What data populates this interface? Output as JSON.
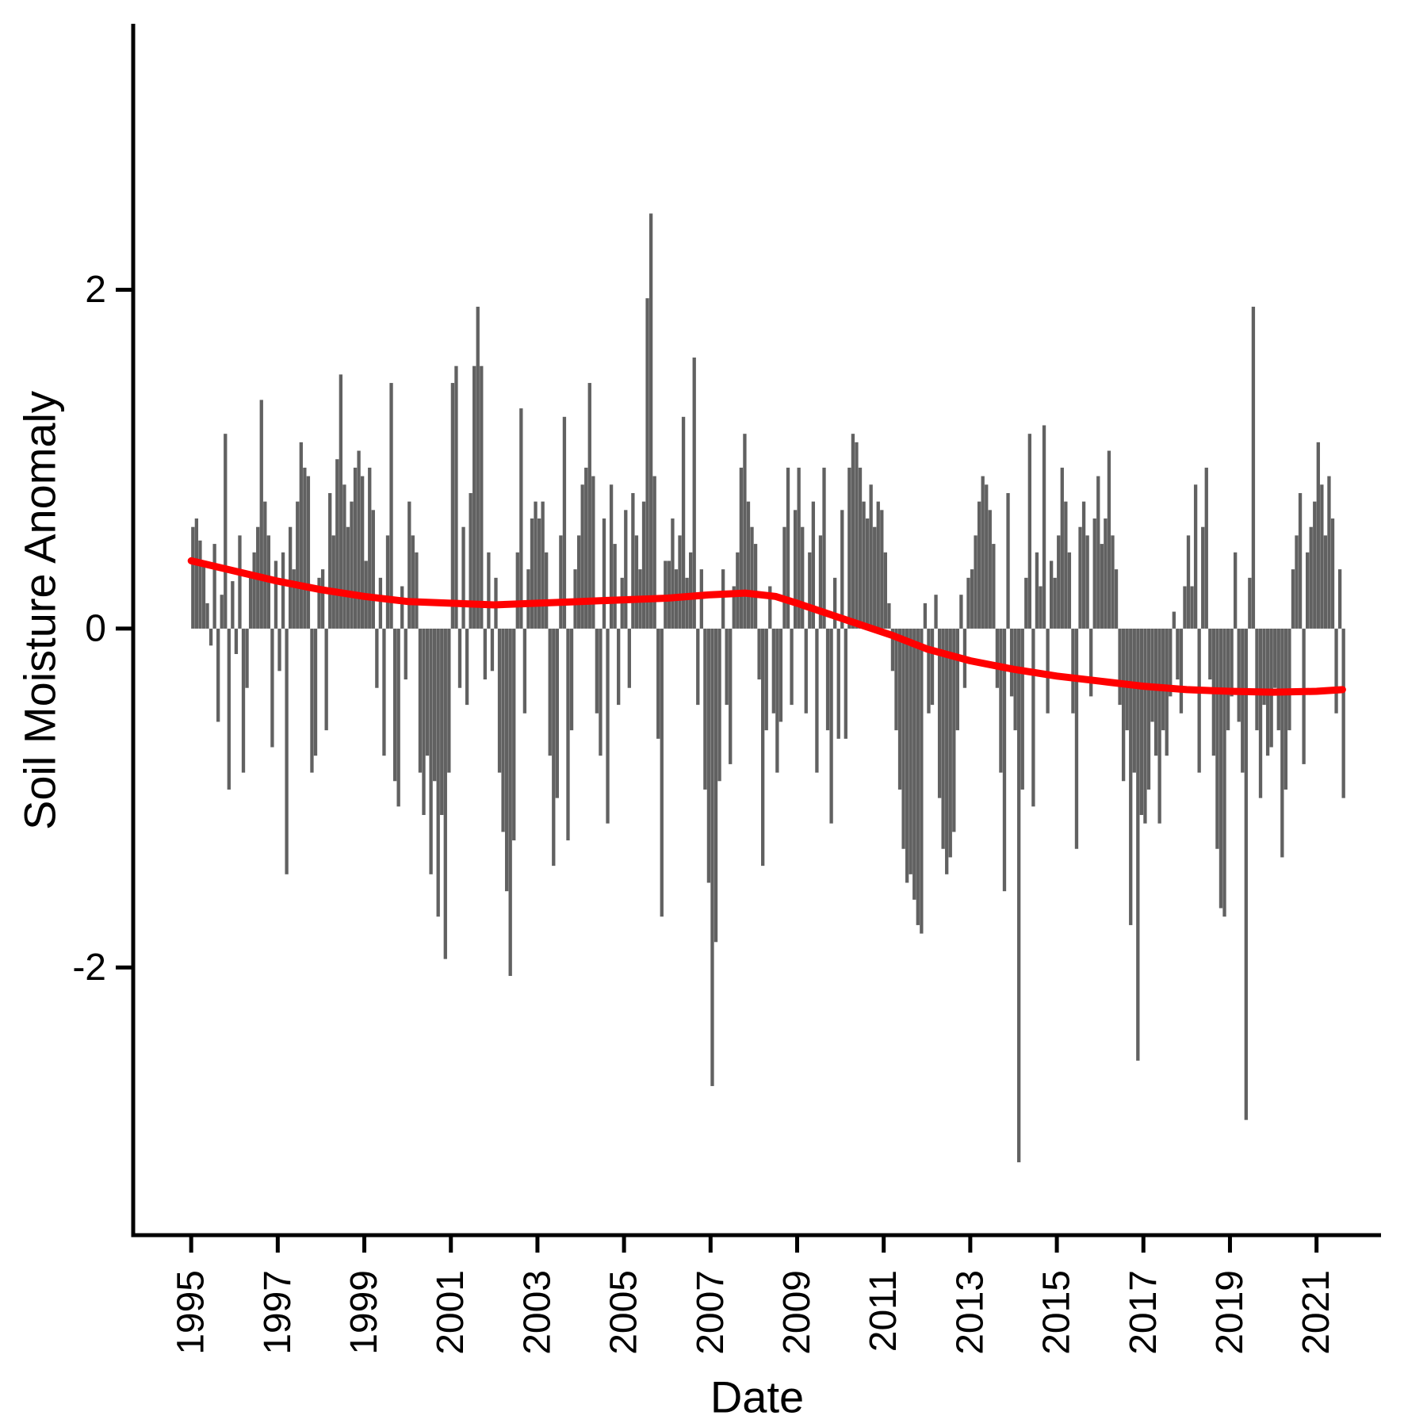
{
  "chart_data": {
    "type": "bar",
    "title": "",
    "xlabel": "Date",
    "ylabel": "Soil Moisture Anomaly",
    "legend": "none",
    "grid": false,
    "x_tick_labels": [
      "1995",
      "1997",
      "1999",
      "2001",
      "2003",
      "2005",
      "2007",
      "2009",
      "2011",
      "2013",
      "2015",
      "2017",
      "2019",
      "2021"
    ],
    "x_tick_years": [
      1995,
      1997,
      1999,
      2001,
      2003,
      2005,
      2007,
      2009,
      2011,
      2013,
      2015,
      2017,
      2019,
      2021
    ],
    "y_ticks": [
      -2,
      0,
      2
    ],
    "ylim": [
      -3.58,
      3.57
    ],
    "xlim": [
      1993.66,
      2022.49
    ],
    "frequency": "monthly",
    "start_year": 1995,
    "start_month": 1,
    "colors": {
      "bar": "#616161",
      "trend": "#FF0000",
      "axis": "#000000",
      "background": "#FFFFFF"
    },
    "values": [
      0.6,
      0.65,
      0.52,
      0.38,
      0.15,
      -0.1,
      0.5,
      -0.55,
      0.2,
      1.15,
      -0.95,
      0.28,
      -0.15,
      0.55,
      -0.85,
      -0.35,
      0.3,
      0.45,
      0.6,
      1.35,
      0.75,
      0.55,
      -0.7,
      0.4,
      -0.25,
      0.45,
      -1.45,
      0.6,
      0.35,
      0.75,
      1.1,
      0.95,
      0.9,
      -0.85,
      -0.75,
      0.3,
      0.35,
      -0.6,
      0.8,
      0.55,
      1.0,
      1.5,
      0.85,
      0.6,
      0.75,
      0.95,
      1.05,
      0.9,
      0.4,
      0.95,
      0.7,
      -0.35,
      0.3,
      -0.75,
      0.55,
      1.45,
      -0.9,
      -1.05,
      0.25,
      -0.3,
      0.75,
      0.55,
      0.45,
      -0.85,
      -1.1,
      -0.75,
      -1.45,
      -0.9,
      -1.7,
      -1.1,
      -1.95,
      -0.85,
      1.45,
      1.55,
      -0.35,
      0.6,
      -0.45,
      0.8,
      1.55,
      1.9,
      1.55,
      -0.3,
      0.45,
      -0.25,
      0.3,
      -0.85,
      -1.2,
      -1.55,
      -2.05,
      -1.25,
      0.45,
      1.3,
      -0.5,
      0.35,
      0.65,
      0.75,
      0.65,
      0.75,
      0.45,
      -0.75,
      -1.4,
      -1.0,
      0.55,
      1.25,
      -1.25,
      -0.6,
      0.35,
      0.55,
      0.85,
      0.95,
      1.45,
      0.9,
      -0.5,
      -0.75,
      0.65,
      -1.15,
      0.85,
      0.5,
      -0.45,
      0.3,
      0.7,
      -0.35,
      0.8,
      0.55,
      0.35,
      0.75,
      1.95,
      2.45,
      0.9,
      -0.65,
      -1.7,
      0.4,
      0.4,
      0.65,
      0.35,
      0.55,
      1.25,
      0.3,
      0.45,
      1.6,
      -0.45,
      0.35,
      -0.95,
      -1.5,
      -2.7,
      -1.85,
      -0.9,
      0.35,
      -0.45,
      -0.8,
      0.25,
      0.45,
      0.95,
      1.15,
      0.75,
      0.6,
      0.5,
      -0.3,
      -1.4,
      -0.6,
      0.25,
      -0.5,
      -0.85,
      -0.55,
      0.6,
      0.95,
      -0.45,
      0.7,
      0.95,
      0.6,
      -0.5,
      0.45,
      0.75,
      -0.85,
      0.55,
      0.95,
      -0.6,
      -1.15,
      0.3,
      -0.65,
      0.7,
      -0.65,
      0.95,
      1.15,
      1.1,
      0.95,
      0.75,
      0.65,
      0.85,
      0.6,
      0.75,
      0.7,
      0.45,
      0.15,
      -0.25,
      -0.6,
      -0.95,
      -1.3,
      -1.5,
      -1.45,
      -1.6,
      -1.75,
      -1.8,
      0.15,
      -0.5,
      -0.45,
      0.2,
      -1.0,
      -1.3,
      -1.45,
      -1.35,
      -1.2,
      -0.6,
      0.2,
      -0.35,
      0.3,
      0.35,
      0.55,
      0.75,
      0.9,
      0.85,
      0.7,
      0.5,
      -0.35,
      -0.85,
      -1.55,
      0.8,
      -0.4,
      -0.6,
      -3.15,
      -0.95,
      0.3,
      1.15,
      -1.05,
      0.45,
      0.25,
      1.2,
      -0.5,
      0.4,
      0.3,
      0.55,
      0.95,
      0.75,
      0.45,
      -0.5,
      -1.3,
      0.6,
      0.75,
      0.55,
      -0.4,
      0.65,
      0.9,
      0.5,
      0.65,
      1.05,
      0.55,
      0.35,
      -0.45,
      -0.9,
      -0.6,
      -1.75,
      -0.85,
      -2.55,
      -1.1,
      -1.15,
      -0.95,
      -0.55,
      -0.75,
      -1.15,
      -0.6,
      -0.75,
      -0.4,
      0.1,
      -0.3,
      -0.5,
      0.25,
      0.55,
      0.25,
      0.85,
      -0.85,
      0.6,
      0.95,
      -0.3,
      -0.75,
      -1.3,
      -1.65,
      -1.7,
      -0.6,
      -0.4,
      0.45,
      -0.55,
      -0.85,
      -2.9,
      0.3,
      1.9,
      -0.6,
      -1.0,
      -0.45,
      -0.75,
      -0.7,
      -0.35,
      -0.6,
      -1.35,
      -0.95,
      -0.6,
      0.35,
      0.55,
      0.8,
      -0.8,
      0.45,
      0.6,
      0.75,
      1.1,
      0.85,
      0.55,
      0.9,
      0.65,
      -0.5,
      0.35,
      -1.0
    ],
    "trend": [
      [
        1995.0,
        0.4
      ],
      [
        1996.0,
        0.34
      ],
      [
        1997.0,
        0.28
      ],
      [
        1998.0,
        0.23
      ],
      [
        1999.0,
        0.19
      ],
      [
        2000.0,
        0.16
      ],
      [
        2001.0,
        0.15
      ],
      [
        2002.0,
        0.14
      ],
      [
        2003.0,
        0.15
      ],
      [
        2004.0,
        0.16
      ],
      [
        2005.0,
        0.17
      ],
      [
        2006.0,
        0.18
      ],
      [
        2007.0,
        0.2
      ],
      [
        2007.8,
        0.21
      ],
      [
        2008.5,
        0.19
      ],
      [
        2009.0,
        0.15
      ],
      [
        2009.8,
        0.08
      ],
      [
        2010.5,
        0.02
      ],
      [
        2011.2,
        -0.04
      ],
      [
        2012.0,
        -0.12
      ],
      [
        2013.0,
        -0.19
      ],
      [
        2014.0,
        -0.24
      ],
      [
        2015.0,
        -0.28
      ],
      [
        2016.0,
        -0.31
      ],
      [
        2017.0,
        -0.34
      ],
      [
        2018.0,
        -0.36
      ],
      [
        2019.0,
        -0.37
      ],
      [
        2020.0,
        -0.375
      ],
      [
        2021.0,
        -0.37
      ],
      [
        2021.6,
        -0.36
      ]
    ]
  }
}
